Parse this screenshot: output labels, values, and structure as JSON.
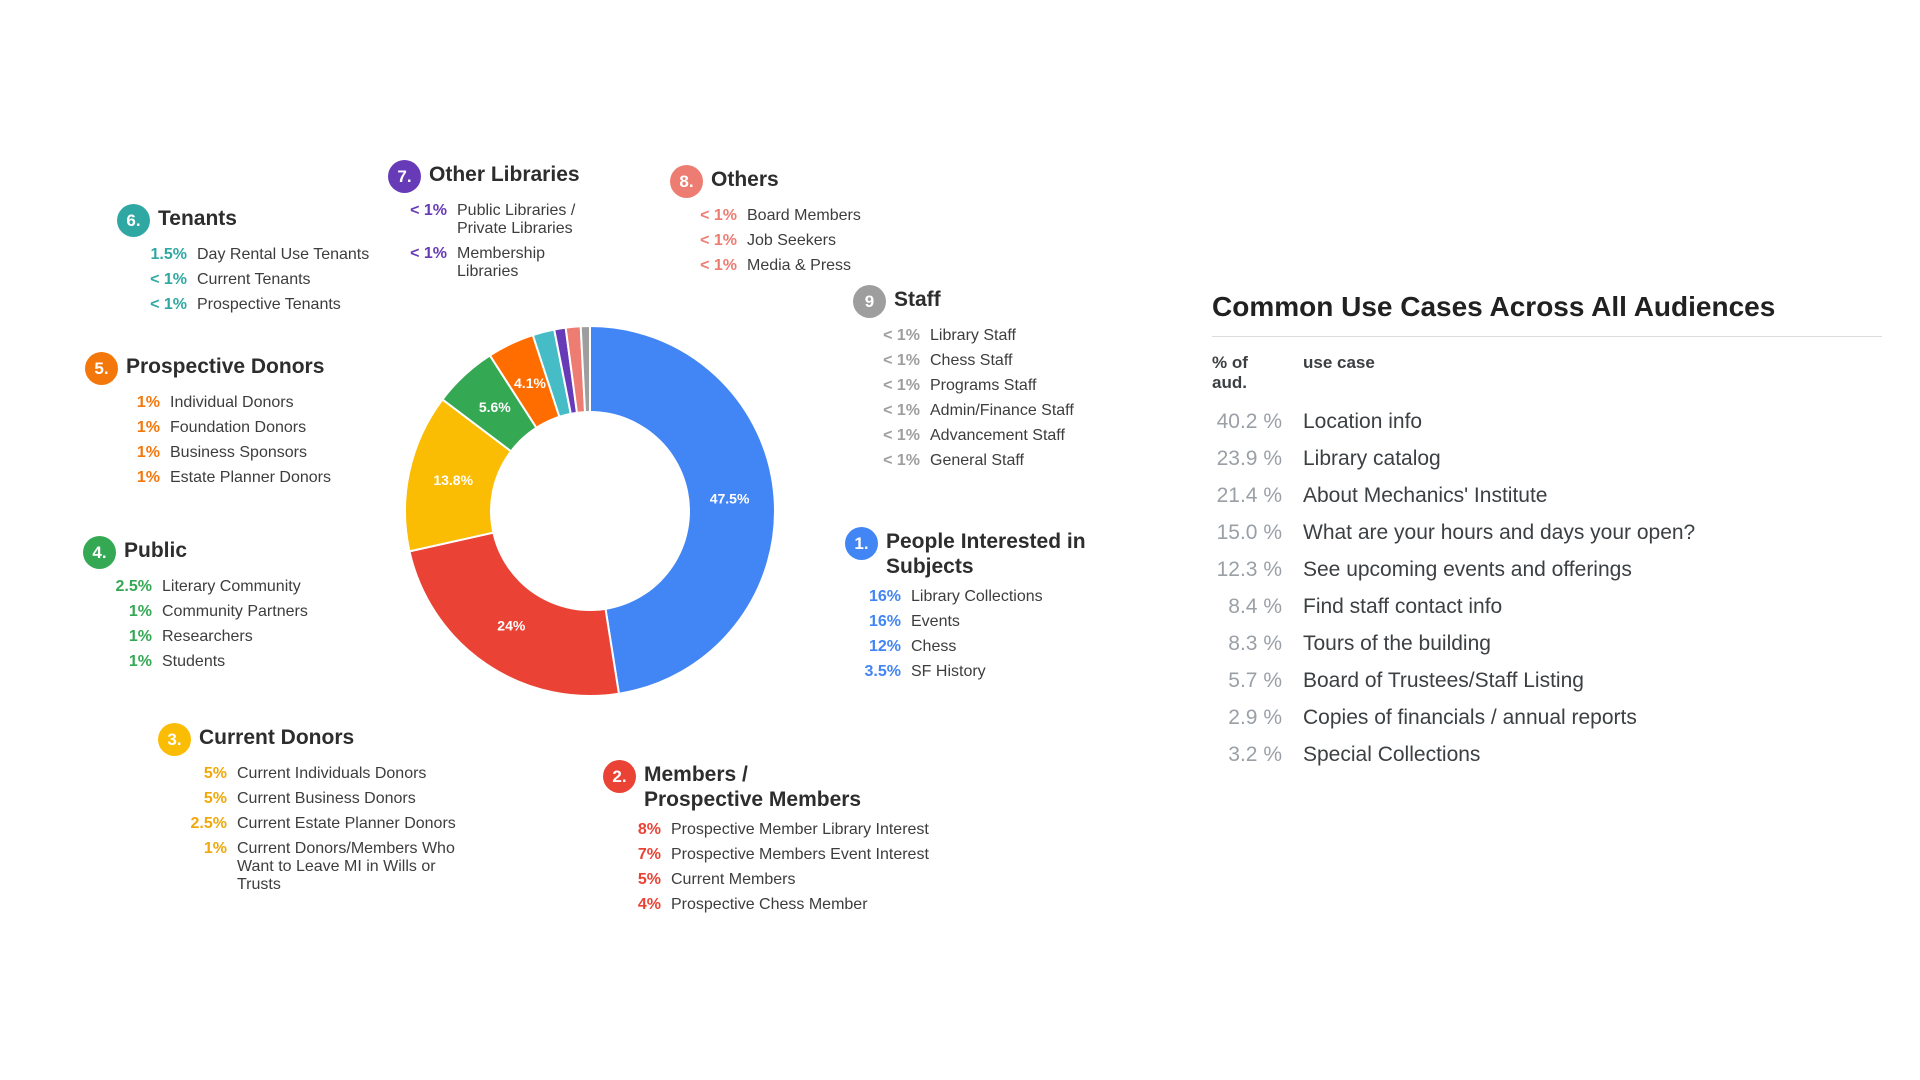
{
  "chart_data": [
    {
      "type": "pie",
      "donut": true,
      "title": "",
      "legend_position": "around",
      "slices": [
        {
          "name": "People Interested in Subjects",
          "value": 47.5,
          "pct_label": "47.5%",
          "color": "#4285F4"
        },
        {
          "name": "Members / Prospective Members",
          "value": 24,
          "pct_label": "24%",
          "color": "#EA4335"
        },
        {
          "name": "Current Donors",
          "value": 13.8,
          "pct_label": "13.8%",
          "color": "#FBBC04"
        },
        {
          "name": "Public",
          "value": 5.6,
          "pct_label": "5.6%",
          "color": "#34A853"
        },
        {
          "name": "Prospective Donors",
          "value": 4.1,
          "pct_label": "4.1%",
          "color": "#FF6D01"
        },
        {
          "name": "Tenants",
          "value": 1.9,
          "pct_label": "",
          "color": "#46BDC6"
        },
        {
          "name": "Other Libraries",
          "value": 1.0,
          "pct_label": "",
          "color": "#673AB7"
        },
        {
          "name": "Others",
          "value": 1.3,
          "pct_label": "",
          "color": "#ED7D72"
        },
        {
          "name": "Staff",
          "value": 0.8,
          "pct_label": "",
          "color": "#9E9E9E"
        }
      ]
    },
    {
      "type": "table",
      "title": "Common Use Cases Across All Audiences",
      "columns": [
        "% of aud.",
        "use case"
      ],
      "rows": [
        {
          "pct": "40.2 %",
          "use_case": "Location info"
        },
        {
          "pct": "23.9 %",
          "use_case": "Library catalog"
        },
        {
          "pct": "21.4 %",
          "use_case": "About Mechanics' Institute"
        },
        {
          "pct": "15.0 %",
          "use_case": "What are your hours and days your open?"
        },
        {
          "pct": "12.3 %",
          "use_case": "See upcoming events and offerings"
        },
        {
          "pct": "8.4 %",
          "use_case": "Find staff contact info"
        },
        {
          "pct": "8.3 %",
          "use_case": "Tours of the building"
        },
        {
          "pct": "5.7 %",
          "use_case": "Board of Trustees/Staff Listing"
        },
        {
          "pct": "2.9 %",
          "use_case": "Copies of financials / annual reports"
        },
        {
          "pct": "3.2 %",
          "use_case": "Special Collections"
        }
      ]
    }
  ],
  "groups": [
    {
      "id": 1,
      "num": "1.",
      "color": "#4285F4",
      "title": "People Interested in\nSubjects",
      "items": [
        {
          "pct": "16%",
          "label": "Library Collections"
        },
        {
          "pct": "16%",
          "label": "Events"
        },
        {
          "pct": "12%",
          "label": "Chess"
        },
        {
          "pct": "3.5%",
          "label": "SF History"
        }
      ]
    },
    {
      "id": 2,
      "num": "2.",
      "color": "#EA4335",
      "title": "Members /\nProspective Members",
      "items": [
        {
          "pct": "8%",
          "label": "Prospective Member Library Interest"
        },
        {
          "pct": "7%",
          "label": "Prospective Members Event Interest"
        },
        {
          "pct": "5%",
          "label": "Current Members"
        },
        {
          "pct": "4%",
          "label": "Prospective Chess Member"
        }
      ]
    },
    {
      "id": 3,
      "num": "3.",
      "color": "#FBBC04",
      "pct_color": "#F0A80A",
      "title": "Current Donors",
      "items": [
        {
          "pct": "5%",
          "label": "Current Individuals Donors"
        },
        {
          "pct": "5%",
          "label": "Current Business Donors"
        },
        {
          "pct": "2.5%",
          "label": "Current Estate Planner Donors"
        },
        {
          "pct": "1%",
          "label": "Current Donors/Members Who\nWant to Leave MI in Wills or\nTrusts"
        }
      ]
    },
    {
      "id": 4,
      "num": "4.",
      "color": "#34A853",
      "title": "Public",
      "items": [
        {
          "pct": "2.5%",
          "label": "Literary Community"
        },
        {
          "pct": "1%",
          "label": "Community Partners"
        },
        {
          "pct": "1%",
          "label": "Researchers"
        },
        {
          "pct": "1%",
          "label": "Students"
        }
      ]
    },
    {
      "id": 5,
      "num": "5.",
      "color": "#F4770B",
      "title": "Prospective Donors",
      "items": [
        {
          "pct": "1%",
          "label": "Individual Donors"
        },
        {
          "pct": "1%",
          "label": "Foundation Donors"
        },
        {
          "pct": "1%",
          "label": "Business Sponsors"
        },
        {
          "pct": "1%",
          "label": "Estate Planner Donors"
        }
      ]
    },
    {
      "id": 6,
      "num": "6.",
      "color": "#2FA8A3",
      "title": "Tenants",
      "items": [
        {
          "pct": "1.5%",
          "label": "Day Rental Use Tenants"
        },
        {
          "pct": "< 1%",
          "label": "Current Tenants"
        },
        {
          "pct": "< 1%",
          "label": "Prospective Tenants"
        }
      ]
    },
    {
      "id": 7,
      "num": "7.",
      "color": "#673AB7",
      "title": "Other Libraries",
      "items": [
        {
          "pct": "< 1%",
          "label": "Public Libraries /\nPrivate Libraries"
        },
        {
          "pct": "< 1%",
          "label": "Membership\nLibraries"
        }
      ]
    },
    {
      "id": 8,
      "num": "8.",
      "color": "#ED7D72",
      "title": "Others",
      "items": [
        {
          "pct": "< 1%",
          "label": "Board Members"
        },
        {
          "pct": "< 1%",
          "label": "Job Seekers"
        },
        {
          "pct": "< 1%",
          "label": "Media & Press"
        }
      ]
    },
    {
      "id": 9,
      "num": "9",
      "color": "#9E9E9E",
      "title": "Staff",
      "items": [
        {
          "pct": "< 1%",
          "label": "Library Staff"
        },
        {
          "pct": "< 1%",
          "label": "Chess Staff"
        },
        {
          "pct": "< 1%",
          "label": "Programs Staff"
        },
        {
          "pct": "< 1%",
          "label": "Admin/Finance Staff"
        },
        {
          "pct": "< 1%",
          "label": "Advancement Staff"
        },
        {
          "pct": "< 1%",
          "label": "General Staff"
        }
      ]
    }
  ]
}
